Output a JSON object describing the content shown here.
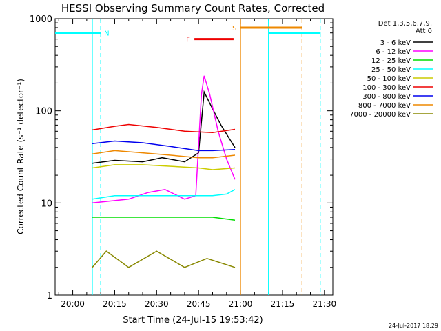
{
  "chart_data": {
    "type": "line",
    "title": "HESSI Observing Summary Count Rates, Corrected",
    "xlabel": "Start Time (24-Jul-15 19:53:42)",
    "ylabel": "Corrected Count Rate (s⁻¹ detector⁻¹)",
    "yscale": "log",
    "ylim": [
      1,
      1000
    ],
    "xlim": [
      "19:53:42",
      "21:33:00"
    ],
    "x_ticks": [
      "20:00",
      "20:15",
      "20:30",
      "20:45",
      "21:00",
      "21:15",
      "21:30"
    ],
    "y_ticks": [
      "1",
      "10",
      "100",
      "1000"
    ],
    "grid": false,
    "legend_position": "top-right",
    "legend_header": [
      "Det 1,3,5,6,7,9,",
      "Att 0"
    ],
    "series": [
      {
        "name": "3 - 6 keV",
        "color": "#000000",
        "points": [
          [
            "20:07",
            27
          ],
          [
            "20:15",
            29
          ],
          [
            "20:25",
            28
          ],
          [
            "20:32",
            31
          ],
          [
            "20:40",
            28
          ],
          [
            "20:45",
            35
          ],
          [
            "20:47",
            160
          ],
          [
            "20:50",
            105
          ],
          [
            "20:53",
            70
          ],
          [
            "20:56",
            50
          ],
          [
            "20:58",
            40
          ]
        ]
      },
      {
        "name": "6 - 12 keV",
        "color": "#ff00ff",
        "points": [
          [
            "20:07",
            10
          ],
          [
            "20:20",
            11
          ],
          [
            "20:27",
            13
          ],
          [
            "20:33",
            14
          ],
          [
            "20:40",
            11
          ],
          [
            "20:44",
            12
          ],
          [
            "20:46",
            150
          ],
          [
            "20:47",
            240
          ],
          [
            "20:49",
            150
          ],
          [
            "20:52",
            60
          ],
          [
            "20:55",
            30
          ],
          [
            "20:58",
            18
          ]
        ]
      },
      {
        "name": "12 - 25 keV",
        "color": "#00dd00",
        "points": [
          [
            "20:07",
            7
          ],
          [
            "20:15",
            7
          ],
          [
            "20:25",
            7
          ],
          [
            "20:35",
            7
          ],
          [
            "20:45",
            7
          ],
          [
            "20:50",
            7
          ],
          [
            "20:58",
            6.5
          ]
        ]
      },
      {
        "name": "25 - 50 keV",
        "color": "#00ffff",
        "points": [
          [
            "20:07",
            11
          ],
          [
            "20:15",
            12
          ],
          [
            "20:25",
            12
          ],
          [
            "20:35",
            12
          ],
          [
            "20:45",
            12
          ],
          [
            "20:50",
            12
          ],
          [
            "20:55",
            12.5
          ],
          [
            "20:58",
            14
          ]
        ]
      },
      {
        "name": "50 - 100 keV",
        "color": "#cccc00",
        "points": [
          [
            "20:07",
            24
          ],
          [
            "20:15",
            26
          ],
          [
            "20:25",
            26
          ],
          [
            "20:35",
            25
          ],
          [
            "20:45",
            24
          ],
          [
            "20:50",
            23
          ],
          [
            "20:58",
            24
          ]
        ]
      },
      {
        "name": "100 - 300 keV",
        "color": "#ee0000",
        "points": [
          [
            "20:07",
            62
          ],
          [
            "20:15",
            68
          ],
          [
            "20:20",
            71
          ],
          [
            "20:30",
            66
          ],
          [
            "20:40",
            60
          ],
          [
            "20:50",
            58
          ],
          [
            "20:58",
            63
          ]
        ]
      },
      {
        "name": "300 - 800 keV",
        "color": "#0000ee",
        "points": [
          [
            "20:07",
            44
          ],
          [
            "20:15",
            47
          ],
          [
            "20:25",
            45
          ],
          [
            "20:35",
            41
          ],
          [
            "20:45",
            37
          ],
          [
            "20:50",
            37
          ],
          [
            "20:58",
            38
          ]
        ]
      },
      {
        "name": "800 - 7000 keV",
        "color": "#ee8800",
        "points": [
          [
            "20:07",
            34
          ],
          [
            "20:15",
            37
          ],
          [
            "20:25",
            35
          ],
          [
            "20:35",
            33
          ],
          [
            "20:45",
            31
          ],
          [
            "20:50",
            31
          ],
          [
            "20:58",
            33
          ]
        ]
      },
      {
        "name": "7000 - 20000 keV",
        "color": "#888800",
        "points": [
          [
            "20:07",
            2
          ],
          [
            "20:12",
            3
          ],
          [
            "20:20",
            2
          ],
          [
            "20:30",
            3
          ],
          [
            "20:40",
            2
          ],
          [
            "20:48",
            2.5
          ],
          [
            "20:58",
            2
          ]
        ]
      }
    ],
    "annotations": [
      {
        "label": "N",
        "color": "#00ffff"
      },
      {
        "label": "S",
        "color": "#ee8800"
      },
      {
        "label": "F",
        "color": "#ee0000"
      }
    ],
    "flag_bars": [
      {
        "name": "night",
        "color": "#00ffff",
        "value": 700,
        "ranges": [
          [
            "19:53:42",
            "20:10:00"
          ],
          [
            "21:10:00",
            "21:28:30"
          ]
        ]
      },
      {
        "name": "saa",
        "color": "#ee8800",
        "value": 800,
        "ranges": [
          [
            "21:00:00",
            "21:22:00"
          ]
        ]
      },
      {
        "name": "flare",
        "color": "#ee0000",
        "value": 600,
        "ranges": [
          [
            "20:43:30",
            "20:57:30"
          ]
        ]
      }
    ],
    "vertical_markers": [
      {
        "time": "20:07:00",
        "color": "#00ffff",
        "style": "solid"
      },
      {
        "time": "20:10:00",
        "color": "#00ffff",
        "style": "dashed"
      },
      {
        "time": "21:00:00",
        "color": "#ee8800",
        "style": "solid"
      },
      {
        "time": "21:10:00",
        "color": "#00ffff",
        "style": "solid"
      },
      {
        "time": "21:22:00",
        "color": "#ee8800",
        "style": "dashed"
      },
      {
        "time": "21:28:30",
        "color": "#00ffff",
        "style": "dashed"
      }
    ],
    "footer": "24-Jul-2017 18:29"
  }
}
